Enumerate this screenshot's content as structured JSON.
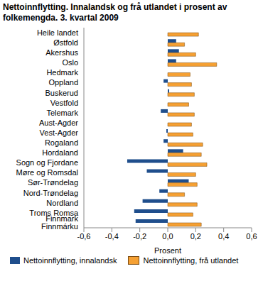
{
  "chart_data": {
    "type": "bar",
    "orientation": "horizontal",
    "title": "Nettoinnflytting. Innalandsk og frå utlandet i prosent av folkemengda. 3. kvartal 2009",
    "x_label": "Prosent",
    "categories": [
      "Heile landet",
      "Østfold",
      "Akershus",
      "Oslo",
      "Hedmark",
      "Oppland",
      "Buskerud",
      "Vestfold",
      "Telemark",
      "Aust-Agder",
      "Vest-Agder",
      "Rogaland",
      "Hordaland",
      "Sogn og Fjordane",
      "Møre og Romsdal",
      "Sør-Trøndelag",
      "Nord-Trøndelag",
      "Nordland",
      "Troms Romsa",
      "Finnmark Finnmárku"
    ],
    "series": [
      {
        "name": "Nettoinnflytting, innalandsk",
        "color": "#1f4e8c",
        "values": [
          0.0,
          0.06,
          0.08,
          0.06,
          0.0,
          -0.03,
          0.01,
          0.0,
          -0.05,
          0.0,
          -0.01,
          -0.03,
          0.11,
          -0.29,
          -0.15,
          0.15,
          -0.06,
          -0.18,
          -0.24,
          -0.23
        ]
      },
      {
        "name": "Nettoinnflytting, frå utlandet",
        "color": "#f5a033",
        "values": [
          0.22,
          0.12,
          0.2,
          0.35,
          0.16,
          0.17,
          0.19,
          0.15,
          0.19,
          0.17,
          0.18,
          0.25,
          0.24,
          0.28,
          0.2,
          0.21,
          0.12,
          0.21,
          0.18,
          0.24
        ]
      }
    ],
    "xlim": [
      -0.6,
      0.6
    ],
    "xticks": [
      {
        "value": -0.6,
        "label": "-0,6"
      },
      {
        "value": -0.4,
        "label": "-0,4"
      },
      {
        "value": -0.2,
        "label": "-0,2"
      },
      {
        "value": 0,
        "label": "0,0"
      },
      {
        "value": 0.2,
        "label": "0,2"
      },
      {
        "value": 0.4,
        "label": "0,4"
      },
      {
        "value": 0.6,
        "label": "0,6"
      }
    ],
    "grid": false,
    "legend": "bottom"
  }
}
